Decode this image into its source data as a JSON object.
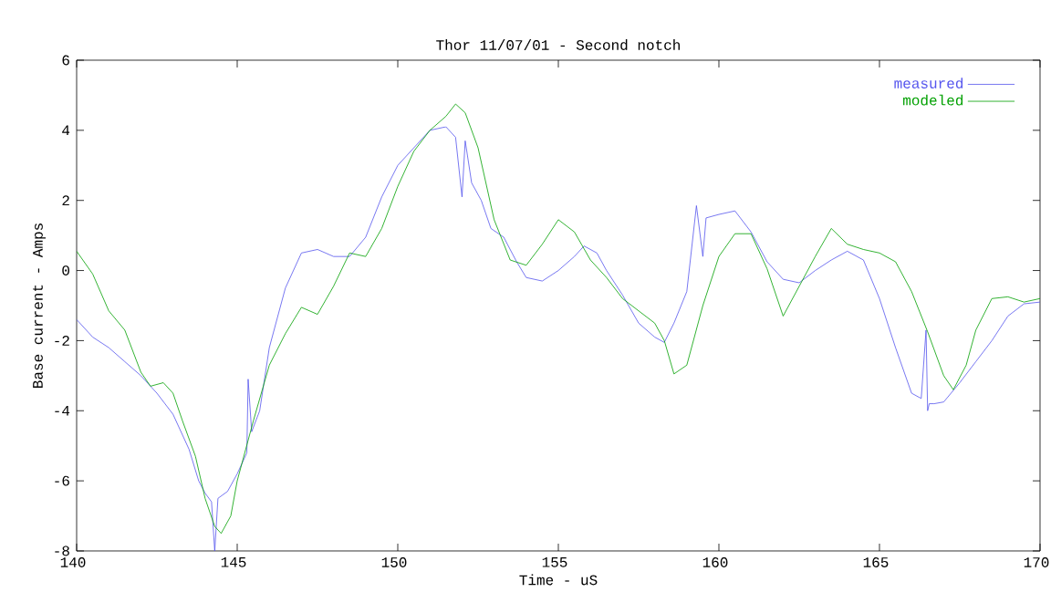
{
  "chart_data": {
    "type": "line",
    "title": "Thor 11/07/01 - Second notch",
    "xlabel": "Time - uS",
    "ylabel": "Base current - Amps",
    "xlim": [
      140,
      170
    ],
    "ylim": [
      -8,
      6
    ],
    "xticks": [
      140,
      145,
      150,
      155,
      160,
      165,
      170
    ],
    "yticks": [
      -8,
      -6,
      -4,
      -2,
      0,
      2,
      4,
      6
    ],
    "legend": "top right",
    "grid": false,
    "marker": "none",
    "line_style": "solid",
    "series": [
      {
        "name": "measured",
        "color": "#5555ee",
        "x": [
          140.0,
          140.5,
          141.0,
          141.5,
          142.0,
          142.5,
          143.0,
          143.5,
          143.8,
          144.0,
          144.2,
          144.3,
          144.4,
          144.7,
          145.0,
          145.3,
          145.34,
          145.45,
          145.7,
          146.0,
          146.5,
          147.0,
          147.5,
          148.0,
          148.5,
          149.0,
          149.5,
          150.0,
          150.5,
          151.0,
          151.5,
          151.8,
          152.0,
          152.1,
          152.3,
          152.6,
          152.9,
          153.3,
          153.7,
          154.0,
          154.5,
          155.0,
          155.5,
          155.8,
          156.2,
          156.5,
          157.0,
          157.5,
          158.0,
          158.3,
          158.6,
          159.0,
          159.3,
          159.5,
          159.6,
          160.0,
          160.5,
          161.0,
          161.5,
          162.0,
          162.5,
          163.0,
          163.5,
          164.0,
          164.5,
          165.0,
          165.5,
          166.0,
          166.3,
          166.45,
          166.5,
          166.55,
          166.7,
          167.0,
          167.5,
          168.0,
          168.5,
          169.0,
          169.5,
          170.0
        ],
        "values": [
          -1.4,
          -1.9,
          -2.2,
          -2.6,
          -3.0,
          -3.5,
          -4.1,
          -5.1,
          -6.0,
          -6.35,
          -6.6,
          -8.0,
          -6.5,
          -6.3,
          -5.8,
          -5.2,
          -3.1,
          -4.6,
          -4.0,
          -2.2,
          -0.5,
          0.5,
          0.6,
          0.4,
          0.4,
          0.95,
          2.1,
          3.0,
          3.5,
          4.0,
          4.1,
          3.8,
          2.1,
          3.7,
          2.5,
          2.0,
          1.2,
          0.95,
          0.25,
          -0.2,
          -0.3,
          0.0,
          0.4,
          0.7,
          0.5,
          0.0,
          -0.7,
          -1.5,
          -1.9,
          -2.05,
          -1.5,
          -0.6,
          1.85,
          0.4,
          1.5,
          1.6,
          1.7,
          1.1,
          0.25,
          -0.25,
          -0.35,
          0.0,
          0.3,
          0.55,
          0.3,
          -0.8,
          -2.2,
          -3.5,
          -3.65,
          -1.7,
          -4.0,
          -3.8,
          -3.8,
          -3.75,
          -3.2,
          -2.6,
          -2.0,
          -1.3,
          -0.95,
          -0.9
        ]
      },
      {
        "name": "modeled",
        "color": "#00a000",
        "x": [
          140.0,
          140.5,
          141.0,
          141.5,
          142.0,
          142.3,
          142.7,
          143.0,
          143.3,
          143.7,
          144.0,
          144.3,
          144.5,
          144.8,
          145.0,
          145.5,
          146.0,
          146.5,
          147.0,
          147.5,
          148.0,
          148.5,
          149.0,
          149.5,
          150.0,
          150.5,
          151.0,
          151.5,
          151.8,
          152.1,
          152.5,
          153.0,
          153.5,
          154.0,
          154.5,
          155.0,
          155.5,
          156.0,
          156.5,
          157.0,
          157.5,
          158.0,
          158.3,
          158.6,
          159.0,
          159.5,
          160.0,
          160.5,
          161.0,
          161.5,
          162.0,
          162.5,
          163.0,
          163.5,
          164.0,
          164.5,
          165.0,
          165.5,
          166.0,
          166.5,
          167.0,
          167.3,
          167.7,
          168.0,
          168.5,
          169.0,
          169.5,
          170.0
        ],
        "values": [
          0.55,
          -0.1,
          -1.15,
          -1.7,
          -2.9,
          -3.3,
          -3.2,
          -3.5,
          -4.3,
          -5.3,
          -6.5,
          -7.3,
          -7.5,
          -7.0,
          -6.0,
          -4.3,
          -2.7,
          -1.8,
          -1.05,
          -1.25,
          -0.45,
          0.5,
          0.4,
          1.2,
          2.4,
          3.4,
          4.0,
          4.4,
          4.75,
          4.5,
          3.5,
          1.45,
          0.3,
          0.15,
          0.75,
          1.45,
          1.1,
          0.3,
          -0.2,
          -0.8,
          -1.15,
          -1.5,
          -2.0,
          -2.95,
          -2.7,
          -1.0,
          0.4,
          1.05,
          1.05,
          0.05,
          -1.3,
          -0.45,
          0.4,
          1.2,
          0.75,
          0.6,
          0.5,
          0.25,
          -0.6,
          -1.75,
          -3.0,
          -3.4,
          -2.7,
          -1.7,
          -0.8,
          -0.75,
          -0.9,
          -0.8
        ]
      }
    ]
  }
}
